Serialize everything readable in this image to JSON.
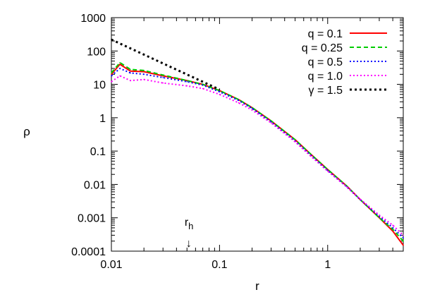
{
  "chart_data": {
    "type": "line",
    "title": "",
    "xlabel": "r",
    "ylabel": "ρ",
    "xscale": "log",
    "yscale": "log",
    "xlim": [
      0.01,
      5
    ],
    "ylim": [
      0.0001,
      1000
    ],
    "x_ticks": [
      "0.01",
      "0.1",
      "1"
    ],
    "y_ticks": [
      "0.0001",
      "0.001",
      "0.01",
      "0.1",
      "1",
      "10",
      "100",
      "1000"
    ],
    "grid": false,
    "legend_position": "top-right",
    "annotation": {
      "label": "r",
      "subscript": "h",
      "arrow": "↓",
      "x": 0.052
    },
    "series": [
      {
        "name": "q = 0.1",
        "color": "#ff0000",
        "dash": "solid",
        "x": [
          0.01,
          0.012,
          0.015,
          0.02,
          0.03,
          0.05,
          0.07,
          0.1,
          0.15,
          0.2,
          0.3,
          0.5,
          0.7,
          1,
          1.5,
          2,
          3,
          4,
          5
        ],
        "y": [
          20,
          40,
          25,
          24,
          18,
          13,
          10,
          6.5,
          3.5,
          2.0,
          0.8,
          0.22,
          0.08,
          0.028,
          0.009,
          0.0035,
          0.001,
          0.0004,
          0.00015
        ]
      },
      {
        "name": "q = 0.25",
        "color": "#00cc00",
        "dash": "dashed",
        "x": [
          0.01,
          0.012,
          0.015,
          0.02,
          0.03,
          0.05,
          0.07,
          0.1,
          0.15,
          0.2,
          0.3,
          0.5,
          0.7,
          1,
          1.5,
          2,
          3,
          4,
          5
        ],
        "y": [
          22,
          45,
          28,
          26,
          19,
          13,
          10,
          6.5,
          3.5,
          2.0,
          0.8,
          0.22,
          0.08,
          0.028,
          0.009,
          0.0035,
          0.001,
          0.00045,
          0.0002
        ]
      },
      {
        "name": "q = 0.5",
        "color": "#0000ff",
        "dash": "dotted",
        "x": [
          0.01,
          0.012,
          0.015,
          0.02,
          0.03,
          0.05,
          0.07,
          0.1,
          0.15,
          0.2,
          0.3,
          0.5,
          0.7,
          1,
          1.5,
          2,
          3,
          4,
          5
        ],
        "y": [
          18,
          30,
          22,
          20,
          16,
          12,
          9.5,
          6.0,
          3.3,
          1.9,
          0.75,
          0.2,
          0.075,
          0.026,
          0.0085,
          0.0035,
          0.0011,
          0.0005,
          0.00025
        ]
      },
      {
        "name": "q = 1.0",
        "color": "#ff00ff",
        "dash": "dotted",
        "x": [
          0.01,
          0.012,
          0.015,
          0.02,
          0.03,
          0.05,
          0.07,
          0.1,
          0.15,
          0.2,
          0.3,
          0.5,
          0.7,
          1,
          1.5,
          2,
          3,
          4,
          5
        ],
        "y": [
          12,
          18,
          13,
          14,
          11,
          9,
          7.5,
          5.0,
          2.8,
          1.7,
          0.7,
          0.19,
          0.07,
          0.025,
          0.0085,
          0.0036,
          0.0012,
          0.0006,
          0.0003
        ]
      },
      {
        "name": "γ = 1.5",
        "color": "#000000",
        "dash": "dotted-thick",
        "x": [
          0.01,
          0.1
        ],
        "y": [
          220,
          7
        ]
      }
    ]
  }
}
